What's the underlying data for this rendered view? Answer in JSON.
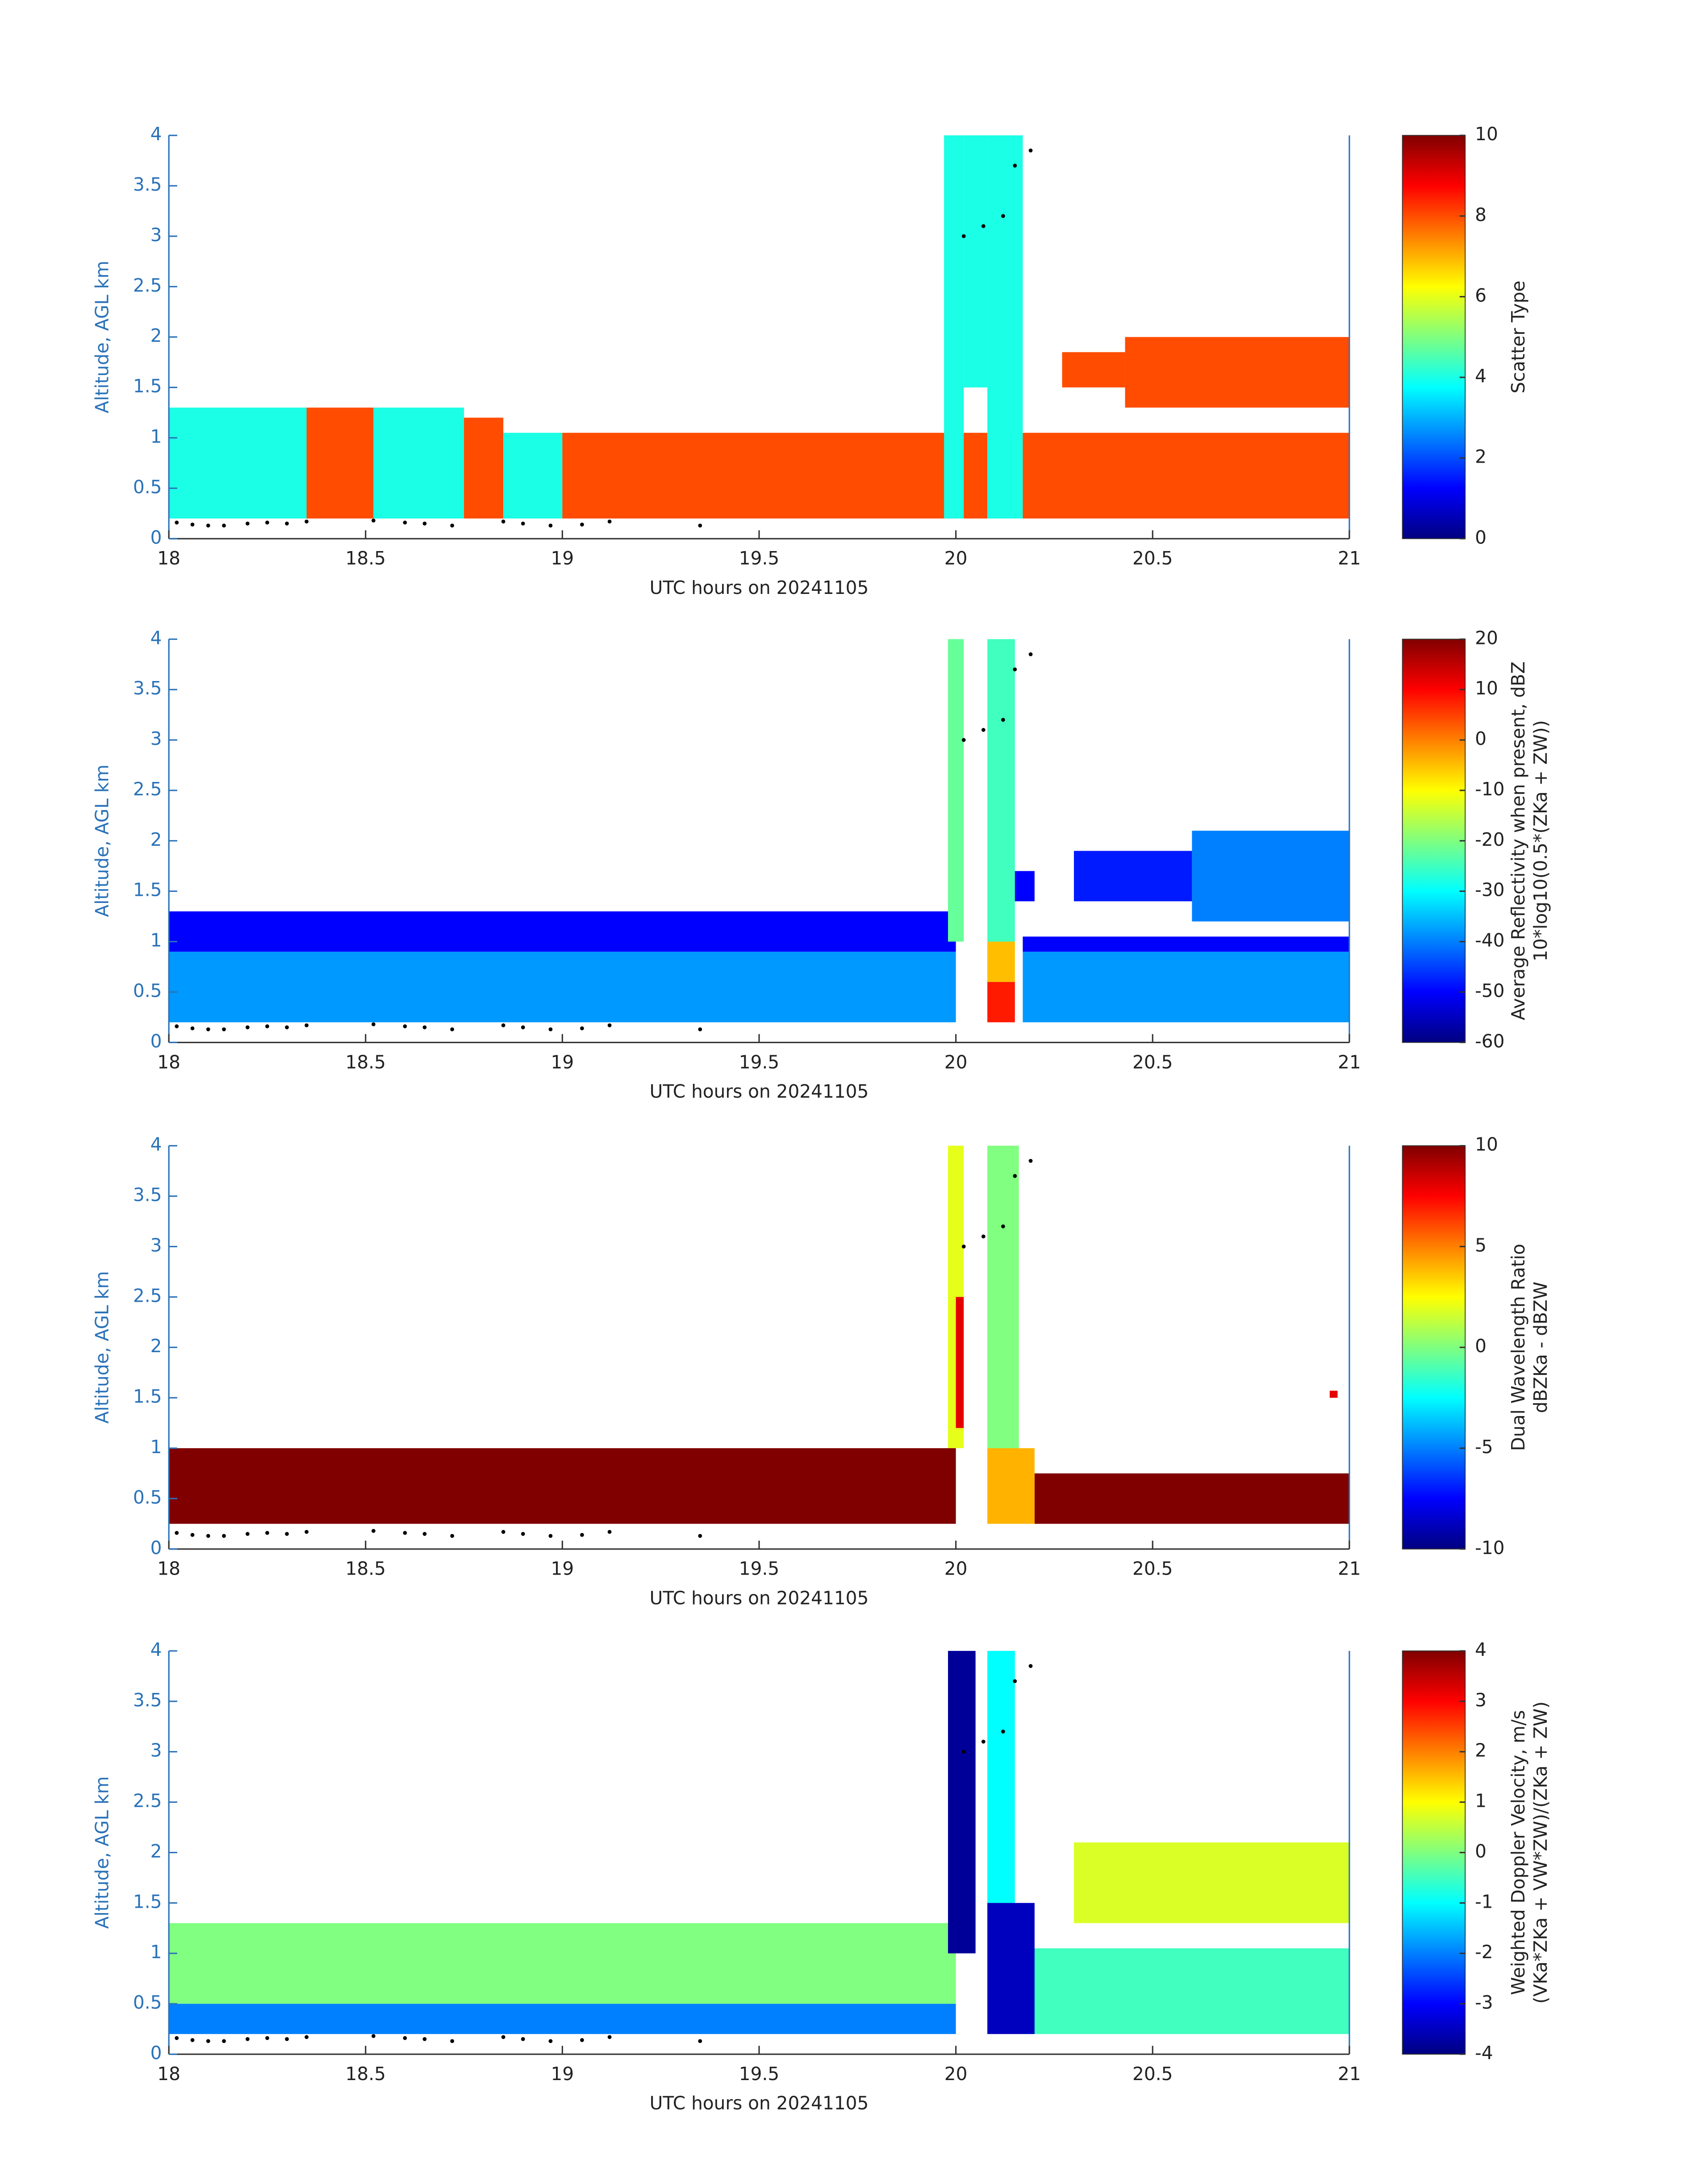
{
  "chart_data": [
    {
      "type": "heatmap",
      "colormap": "jet",
      "xlabel": "UTC hours on 20241105",
      "ylabel": "Altitude, AGL km",
      "colorbar_label": [
        "Scatter Type"
      ],
      "xlim": [
        18,
        21
      ],
      "ylim": [
        0,
        4
      ],
      "xticks": [
        18,
        18.5,
        19,
        19.5,
        20,
        20.5,
        21
      ],
      "yticks": [
        0,
        0.5,
        1,
        1.5,
        2,
        2.5,
        3,
        3.5,
        4
      ],
      "clim": [
        0,
        10
      ],
      "cticks": [
        0,
        2,
        4,
        6,
        8,
        10
      ],
      "blocks": [
        {
          "x": [
            18,
            18.35
          ],
          "y": [
            0.2,
            1.3
          ],
          "value": 4
        },
        {
          "x": [
            18.35,
            18.52
          ],
          "y": [
            0.2,
            1.3
          ],
          "value": 8
        },
        {
          "x": [
            18.52,
            18.75
          ],
          "y": [
            0.2,
            1.3
          ],
          "value": 4
        },
        {
          "x": [
            18.75,
            18.85
          ],
          "y": [
            0.2,
            1.2
          ],
          "value": 8
        },
        {
          "x": [
            18.85,
            19
          ],
          "y": [
            0.2,
            1.05
          ],
          "value": 4
        },
        {
          "x": [
            19,
            20
          ],
          "y": [
            0.2,
            1.05
          ],
          "value": 8
        },
        {
          "x": [
            19.97,
            20.02
          ],
          "y": [
            0.2,
            4
          ],
          "value": 4
        },
        {
          "x": [
            20.02,
            20.08
          ],
          "y": [
            1.5,
            4
          ],
          "value": 4
        },
        {
          "x": [
            20.02,
            20.08
          ],
          "y": [
            0.2,
            1.05
          ],
          "value": 8
        },
        {
          "x": [
            20.08,
            20.17
          ],
          "y": [
            0.2,
            4
          ],
          "value": 4
        },
        {
          "x": [
            20.17,
            21
          ],
          "y": [
            0.2,
            1.05
          ],
          "value": 8
        },
        {
          "x": [
            20.27,
            20.43
          ],
          "y": [
            1.5,
            1.85
          ],
          "value": 8
        },
        {
          "x": [
            20.43,
            21
          ],
          "y": [
            1.3,
            2
          ],
          "value": 8
        }
      ],
      "markers": {
        "x": [
          18.02,
          18.06,
          18.1,
          18.14,
          18.2,
          18.25,
          18.3,
          18.35,
          18.52,
          18.6,
          18.65,
          18.72,
          18.85,
          18.9,
          18.97,
          19.05,
          19.12,
          19.35,
          20.02,
          20.07,
          20.12,
          20.15,
          20.19
        ],
        "y": [
          0.16,
          0.14,
          0.13,
          0.13,
          0.15,
          0.16,
          0.15,
          0.17,
          0.18,
          0.16,
          0.15,
          0.13,
          0.17,
          0.15,
          0.13,
          0.14,
          0.17,
          0.13,
          3.0,
          3.1,
          3.2,
          3.7,
          3.85
        ]
      }
    },
    {
      "type": "heatmap",
      "colormap": "jet",
      "xlabel": "UTC hours on 20241105",
      "ylabel": "Altitude, AGL km",
      "colorbar_label": [
        "Average Reflectivity when present, dBZ",
        "10*log10(0.5*(ZKa + ZW))"
      ],
      "xlim": [
        18,
        21
      ],
      "ylim": [
        0,
        4
      ],
      "xticks": [
        18,
        18.5,
        19,
        19.5,
        20,
        20.5,
        21
      ],
      "yticks": [
        0,
        0.5,
        1,
        1.5,
        2,
        2.5,
        3,
        3.5,
        4
      ],
      "clim": [
        -60,
        20
      ],
      "cticks": [
        -60,
        -50,
        -40,
        -30,
        -20,
        -10,
        0,
        10,
        20
      ],
      "blocks": [
        {
          "x": [
            18,
            20
          ],
          "y": [
            0.2,
            0.9
          ],
          "value": -38
        },
        {
          "x": [
            18,
            20
          ],
          "y": [
            0.9,
            1.3
          ],
          "value": -50
        },
        {
          "x": [
            20.17,
            21
          ],
          "y": [
            0.2,
            0.9
          ],
          "value": -38
        },
        {
          "x": [
            20.17,
            21
          ],
          "y": [
            0.9,
            1.05
          ],
          "value": -50
        },
        {
          "x": [
            20.3,
            20.6
          ],
          "y": [
            1.4,
            1.9
          ],
          "value": -48
        },
        {
          "x": [
            20.6,
            21
          ],
          "y": [
            1.2,
            2.1
          ],
          "value": -40
        },
        {
          "x": [
            19.98,
            20.02
          ],
          "y": [
            1,
            4
          ],
          "value": -22
        },
        {
          "x": [
            20.08,
            20.15
          ],
          "y": [
            1,
            4
          ],
          "value": -25
        },
        {
          "x": [
            20.08,
            20.15
          ],
          "y": [
            0.6,
            1
          ],
          "value": -5
        },
        {
          "x": [
            20.08,
            20.15
          ],
          "y": [
            0.2,
            0.6
          ],
          "value": 8
        },
        {
          "x": [
            20.15,
            20.2
          ],
          "y": [
            1.4,
            1.7
          ],
          "value": -50
        }
      ],
      "markers": {
        "x": [
          18.02,
          18.06,
          18.1,
          18.14,
          18.2,
          18.25,
          18.3,
          18.35,
          18.52,
          18.6,
          18.65,
          18.72,
          18.85,
          18.9,
          18.97,
          19.05,
          19.12,
          19.35,
          20.02,
          20.07,
          20.12,
          20.15,
          20.19
        ],
        "y": [
          0.16,
          0.14,
          0.13,
          0.13,
          0.15,
          0.16,
          0.15,
          0.17,
          0.18,
          0.16,
          0.15,
          0.13,
          0.17,
          0.15,
          0.13,
          0.14,
          0.17,
          0.13,
          3.0,
          3.1,
          3.2,
          3.7,
          3.85
        ]
      }
    },
    {
      "type": "heatmap",
      "colormap": "jet",
      "xlabel": "UTC hours on 20241105",
      "ylabel": "Altitude, AGL km",
      "colorbar_label": [
        "Dual Wavelength Ratio",
        "dBZKa - dBZW"
      ],
      "xlim": [
        18,
        21
      ],
      "ylim": [
        0,
        4
      ],
      "xticks": [
        18,
        18.5,
        19,
        19.5,
        20,
        20.5,
        21
      ],
      "yticks": [
        0,
        0.5,
        1,
        1.5,
        2,
        2.5,
        3,
        3.5,
        4
      ],
      "clim": [
        -10,
        10
      ],
      "cticks": [
        -10,
        -5,
        0,
        5,
        10
      ],
      "blocks": [
        {
          "x": [
            18,
            20
          ],
          "y": [
            0.25,
            1
          ],
          "value": 10
        },
        {
          "x": [
            20.2,
            21
          ],
          "y": [
            0.25,
            0.75
          ],
          "value": 10
        },
        {
          "x": [
            19.98,
            20.02
          ],
          "y": [
            1,
            4
          ],
          "value": 2
        },
        {
          "x": [
            20,
            20.02
          ],
          "y": [
            1.2,
            2.5
          ],
          "value": 8
        },
        {
          "x": [
            20.08,
            20.16
          ],
          "y": [
            1,
            4
          ],
          "value": 0
        },
        {
          "x": [
            20.08,
            20.2
          ],
          "y": [
            0.25,
            1
          ],
          "value": 4
        },
        {
          "x": [
            20.95,
            20.97
          ],
          "y": [
            1.5,
            1.57
          ],
          "value": 8
        }
      ],
      "markers": {
        "x": [
          18.02,
          18.06,
          18.1,
          18.14,
          18.2,
          18.25,
          18.3,
          18.35,
          18.52,
          18.6,
          18.65,
          18.72,
          18.85,
          18.9,
          18.97,
          19.05,
          19.12,
          19.35,
          20.02,
          20.07,
          20.12,
          20.15,
          20.19
        ],
        "y": [
          0.16,
          0.14,
          0.13,
          0.13,
          0.15,
          0.16,
          0.15,
          0.17,
          0.18,
          0.16,
          0.15,
          0.13,
          0.17,
          0.15,
          0.13,
          0.14,
          0.17,
          0.13,
          3.0,
          3.1,
          3.2,
          3.7,
          3.85
        ]
      }
    },
    {
      "type": "heatmap",
      "colormap": "jet",
      "xlabel": "UTC hours on 20241105",
      "ylabel": "Altitude, AGL km",
      "colorbar_label": [
        "Weighted Doppler Velocity, m/s",
        "(VKa*ZKa + VW*ZW)/(ZKa + ZW)"
      ],
      "xlim": [
        18,
        21
      ],
      "ylim": [
        0,
        4
      ],
      "xticks": [
        18,
        18.5,
        19,
        19.5,
        20,
        20.5,
        21
      ],
      "yticks": [
        0,
        0.5,
        1,
        1.5,
        2,
        2.5,
        3,
        3.5,
        4
      ],
      "clim": [
        -4,
        4
      ],
      "cticks": [
        -4,
        -3,
        -2,
        -1,
        0,
        1,
        2,
        3,
        4
      ],
      "blocks": [
        {
          "x": [
            18,
            20
          ],
          "y": [
            0.2,
            0.5
          ],
          "value": -2
        },
        {
          "x": [
            18,
            20
          ],
          "y": [
            0.5,
            1.3
          ],
          "value": 0
        },
        {
          "x": [
            20.17,
            21
          ],
          "y": [
            0.2,
            1.05
          ],
          "value": -0.5
        },
        {
          "x": [
            20.3,
            21
          ],
          "y": [
            1.3,
            2.1
          ],
          "value": 0.7
        },
        {
          "x": [
            19.98,
            20.05
          ],
          "y": [
            1,
            4
          ],
          "value": -3.8
        },
        {
          "x": [
            20.08,
            20.15
          ],
          "y": [
            1.5,
            4
          ],
          "value": -1
        },
        {
          "x": [
            20.08,
            20.2
          ],
          "y": [
            0.2,
            1.5
          ],
          "value": -3.5
        }
      ],
      "markers": {
        "x": [
          18.02,
          18.06,
          18.1,
          18.14,
          18.2,
          18.25,
          18.3,
          18.35,
          18.52,
          18.6,
          18.65,
          18.72,
          18.85,
          18.9,
          18.97,
          19.05,
          19.12,
          19.35,
          20.02,
          20.07,
          20.12,
          20.15,
          20.19
        ],
        "y": [
          0.16,
          0.14,
          0.13,
          0.13,
          0.15,
          0.16,
          0.15,
          0.17,
          0.18,
          0.16,
          0.15,
          0.13,
          0.17,
          0.15,
          0.13,
          0.14,
          0.17,
          0.13,
          3.0,
          3.1,
          3.2,
          3.7,
          3.85
        ]
      }
    }
  ]
}
